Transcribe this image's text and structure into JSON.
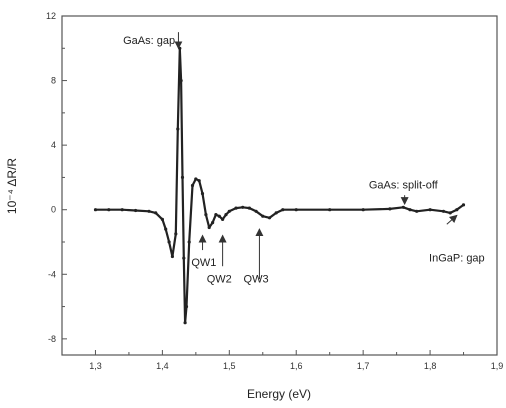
{
  "chart_data": {
    "type": "line",
    "title": "",
    "xlabel": "Energy (eV)",
    "ylabel": "10⁻⁴ ΔR/R",
    "xlim": [
      1.25,
      1.9
    ],
    "ylim": [
      -9,
      12
    ],
    "grid": false,
    "legend": "none",
    "x_ticks": [
      1.3,
      1.4,
      1.5,
      1.6,
      1.7,
      1.8,
      1.9
    ],
    "x_tick_labels": [
      "1,3",
      "1,4",
      "1,5",
      "1,6",
      "1,7",
      "1,8",
      "1,9"
    ],
    "y_ticks": [
      -8,
      -4,
      0,
      4,
      8,
      12
    ],
    "y_tick_labels": [
      "-8",
      "-4",
      "0",
      "4",
      "8",
      "12"
    ],
    "series": [
      {
        "name": "",
        "color": "#222222",
        "points": [
          [
            1.3,
            0.0
          ],
          [
            1.32,
            0.0
          ],
          [
            1.34,
            0.0
          ],
          [
            1.36,
            -0.05
          ],
          [
            1.38,
            -0.1
          ],
          [
            1.39,
            -0.2
          ],
          [
            1.4,
            -0.6
          ],
          [
            1.405,
            -1.2
          ],
          [
            1.41,
            -2.0
          ],
          [
            1.415,
            -2.9
          ],
          [
            1.42,
            -1.5
          ],
          [
            1.423,
            5.0
          ],
          [
            1.426,
            10.0
          ],
          [
            1.428,
            8.0
          ],
          [
            1.43,
            2.0
          ],
          [
            1.432,
            -3.0
          ],
          [
            1.434,
            -7.0
          ],
          [
            1.436,
            -6.0
          ],
          [
            1.44,
            -2.0
          ],
          [
            1.445,
            1.5
          ],
          [
            1.45,
            1.9
          ],
          [
            1.455,
            1.8
          ],
          [
            1.46,
            1.0
          ],
          [
            1.465,
            -0.3
          ],
          [
            1.47,
            -1.1
          ],
          [
            1.475,
            -0.8
          ],
          [
            1.48,
            -0.3
          ],
          [
            1.485,
            -0.4
          ],
          [
            1.49,
            -0.6
          ],
          [
            1.495,
            -0.3
          ],
          [
            1.5,
            -0.1
          ],
          [
            1.51,
            0.1
          ],
          [
            1.52,
            0.15
          ],
          [
            1.53,
            0.1
          ],
          [
            1.54,
            -0.1
          ],
          [
            1.55,
            -0.4
          ],
          [
            1.56,
            -0.5
          ],
          [
            1.57,
            -0.2
          ],
          [
            1.58,
            0.0
          ],
          [
            1.6,
            0.0
          ],
          [
            1.65,
            0.0
          ],
          [
            1.7,
            0.0
          ],
          [
            1.74,
            0.05
          ],
          [
            1.76,
            0.15
          ],
          [
            1.77,
            0.0
          ],
          [
            1.78,
            -0.1
          ],
          [
            1.8,
            0.0
          ],
          [
            1.82,
            -0.1
          ],
          [
            1.83,
            -0.2
          ],
          [
            1.84,
            0.0
          ],
          [
            1.85,
            0.3
          ]
        ]
      }
    ],
    "annotations": [
      {
        "text": "GaAs:  gap",
        "x": 1.425,
        "y": 10.5
      },
      {
        "text": "QW1",
        "x": 1.462,
        "y": -3.5
      },
      {
        "text": "QW2",
        "x": 1.485,
        "y": -4.5
      },
      {
        "text": "QW3",
        "x": 1.54,
        "y": -4.5
      },
      {
        "text": "GaAs:   split-off",
        "x": 1.76,
        "y": 1.3
      },
      {
        "text": "InGaP: gap",
        "x": 1.84,
        "y": -3.2
      }
    ],
    "arrows": [
      {
        "name": "arrow-gaas-gap",
        "from": [
          1.424,
          11.0
        ],
        "to": [
          1.424,
          10.0
        ]
      },
      {
        "name": "arrow-qw1",
        "from": [
          1.46,
          -2.5
        ],
        "to": [
          1.46,
          -1.6
        ]
      },
      {
        "name": "arrow-qw2",
        "from": [
          1.49,
          -3.5
        ],
        "to": [
          1.49,
          -1.6
        ]
      },
      {
        "name": "arrow-qw3",
        "from": [
          1.545,
          -4.3
        ],
        "to": [
          1.545,
          -1.2
        ]
      },
      {
        "name": "arrow-split-off",
        "from": [
          1.762,
          0.9
        ],
        "to": [
          1.762,
          0.35
        ]
      },
      {
        "name": "arrow-ingap",
        "from": [
          1.825,
          -0.9
        ],
        "to": [
          1.84,
          -0.35
        ]
      }
    ]
  }
}
